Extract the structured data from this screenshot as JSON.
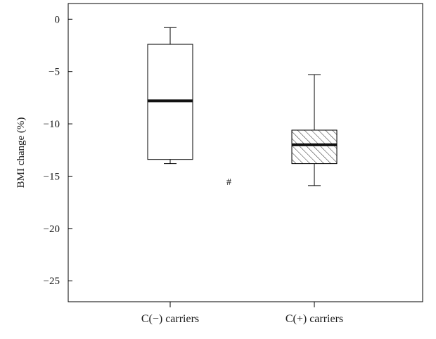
{
  "chart_data": {
    "type": "box",
    "title": "",
    "xlabel": "",
    "ylabel": "BMI change (%)",
    "ylim": [
      -27,
      1.5
    ],
    "yticks": [
      0,
      -5,
      -10,
      -15,
      -20,
      -25
    ],
    "ytick_labels": [
      "0",
      "−5",
      "−10",
      "−15",
      "−20",
      "−25"
    ],
    "categories": [
      "C(−) carriers",
      "C(+) carriers"
    ],
    "boxes": [
      {
        "category": "C(−) carriers",
        "whisker_low": -13.8,
        "q1": -13.4,
        "median": -7.8,
        "q3": -2.4,
        "whisker_high": -0.8,
        "fill": "none"
      },
      {
        "category": "C(+) carriers",
        "whisker_low": -15.9,
        "q1": -13.8,
        "median": -12.0,
        "q3": -10.6,
        "whisker_high": -5.3,
        "fill": "hatched"
      }
    ],
    "annotations": [
      {
        "text": "#",
        "x_between": [
          0,
          1
        ],
        "y": -15.5
      }
    ],
    "grid": false
  }
}
